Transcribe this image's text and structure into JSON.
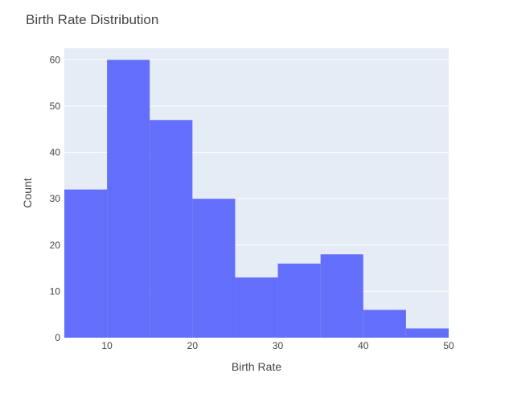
{
  "chart_data": {
    "type": "bar",
    "title": "Birth Rate Distribution",
    "xlabel": "Birth Rate",
    "ylabel": "Count",
    "bins": [
      {
        "start": 5,
        "end": 10,
        "count": 32
      },
      {
        "start": 10,
        "end": 15,
        "count": 60
      },
      {
        "start": 15,
        "end": 20,
        "count": 47
      },
      {
        "start": 20,
        "end": 25,
        "count": 30
      },
      {
        "start": 25,
        "end": 30,
        "count": 13
      },
      {
        "start": 30,
        "end": 35,
        "count": 16
      },
      {
        "start": 35,
        "end": 40,
        "count": 18
      },
      {
        "start": 40,
        "end": 45,
        "count": 6
      },
      {
        "start": 45,
        "end": 50,
        "count": 2
      }
    ],
    "xlim": [
      5,
      50
    ],
    "ylim": [
      0,
      62.5
    ],
    "xticks": [
      10,
      20,
      30,
      40,
      50
    ],
    "yticks": [
      0,
      10,
      20,
      30,
      40,
      50,
      60
    ],
    "grid": true,
    "colors": {
      "bar": "#636efa",
      "plot_background": "#e5ecf6",
      "grid": "#ffffff"
    }
  }
}
